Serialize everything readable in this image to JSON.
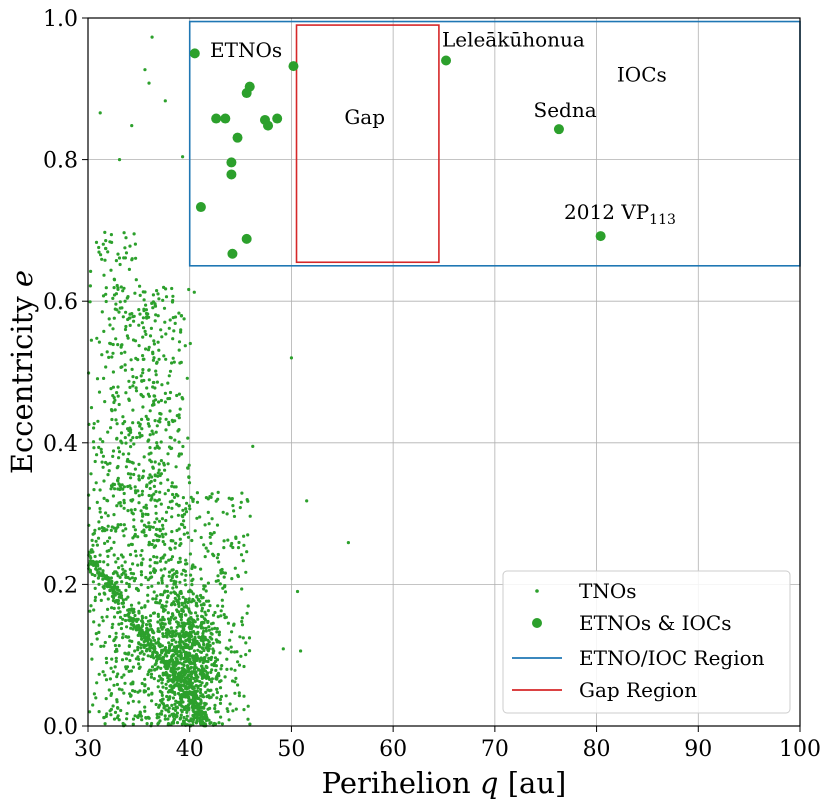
{
  "chart_data": {
    "type": "scatter",
    "xlabel_prefix": "Perihelion ",
    "xlabel_var": "q",
    "xlabel_unit": " [au]",
    "ylabel_prefix": "Eccentricity ",
    "ylabel_var": "e",
    "xlim": [
      30,
      100
    ],
    "ylim": [
      0,
      1
    ],
    "xticks": [
      "30",
      "40",
      "50",
      "60",
      "70",
      "80",
      "90",
      "100"
    ],
    "yticks": [
      "0.0",
      "0.2",
      "0.4",
      "0.6",
      "0.8",
      "1.0"
    ],
    "grid": true,
    "colors": {
      "points": "#2ca02c",
      "etno_region": "#1f77b4",
      "gap_region": "#d62728"
    },
    "regions": [
      {
        "name": "ETNO/IOC Region",
        "x": [
          40,
          100
        ],
        "y": [
          0.65,
          0.995
        ]
      },
      {
        "name": "Gap Region",
        "x": [
          50.5,
          64.5
        ],
        "y": [
          0.655,
          0.99
        ]
      }
    ],
    "annotations": {
      "etnos": {
        "text": "ETNOs",
        "x": 42,
        "y": 0.945
      },
      "gap": {
        "text": "Gap",
        "x": 55.2,
        "y": 0.85
      },
      "leleakuhonua": {
        "text": "Leleākūhonua",
        "x": 64.8,
        "y": 0.96
      },
      "iocs": {
        "text": "IOCs",
        "x": 82,
        "y": 0.91
      },
      "sedna": {
        "text": "Sedna",
        "x": 73.8,
        "y": 0.86
      },
      "vp113_prefix": {
        "text": "2012 VP",
        "x": 76.8,
        "y": 0.716
      },
      "vp113_sub": {
        "text": "113"
      }
    },
    "etnos_iocs": [
      {
        "x": 40.5,
        "y": 0.95
      },
      {
        "x": 50.2,
        "y": 0.932
      },
      {
        "x": 65.2,
        "y": 0.94
      },
      {
        "x": 45.9,
        "y": 0.903
      },
      {
        "x": 45.6,
        "y": 0.894
      },
      {
        "x": 42.6,
        "y": 0.858
      },
      {
        "x": 43.5,
        "y": 0.858
      },
      {
        "x": 47.4,
        "y": 0.856
      },
      {
        "x": 48.6,
        "y": 0.858
      },
      {
        "x": 47.7,
        "y": 0.848
      },
      {
        "x": 44.7,
        "y": 0.831
      },
      {
        "x": 76.3,
        "y": 0.843
      },
      {
        "x": 44.1,
        "y": 0.796
      },
      {
        "x": 44.1,
        "y": 0.779
      },
      {
        "x": 41.1,
        "y": 0.733
      },
      {
        "x": 80.4,
        "y": 0.692
      },
      {
        "x": 45.6,
        "y": 0.688
      },
      {
        "x": 44.2,
        "y": 0.667
      }
    ],
    "tnos_outliers": [
      {
        "x": 36.3,
        "y": 0.973
      },
      {
        "x": 35.6,
        "y": 0.927
      },
      {
        "x": 36.0,
        "y": 0.908
      },
      {
        "x": 37.6,
        "y": 0.883
      },
      {
        "x": 31.2,
        "y": 0.866
      },
      {
        "x": 34.3,
        "y": 0.848
      },
      {
        "x": 39.3,
        "y": 0.804
      },
      {
        "x": 33.1,
        "y": 0.8
      },
      {
        "x": 50.0,
        "y": 0.52
      },
      {
        "x": 46.2,
        "y": 0.395
      },
      {
        "x": 51.5,
        "y": 0.318
      },
      {
        "x": 55.6,
        "y": 0.259
      },
      {
        "x": 50.6,
        "y": 0.19
      },
      {
        "x": 49.2,
        "y": 0.109
      },
      {
        "x": 50.9,
        "y": 0.106
      },
      {
        "x": 45.7,
        "y": 0.27
      },
      {
        "x": 45.3,
        "y": 0.268
      },
      {
        "x": 44.4,
        "y": 0.296
      },
      {
        "x": 42.1,
        "y": 0.323
      },
      {
        "x": 42.8,
        "y": 0.33
      }
    ],
    "tnos_generated": {
      "count": 2600,
      "x_range": [
        30,
        46.5
      ],
      "y_range": [
        0,
        0.7
      ]
    },
    "legend": {
      "placement": "lower-right",
      "entries": [
        "TNOs",
        "ETNOs & IOCs",
        "ETNO/IOC Region",
        "Gap Region"
      ]
    }
  }
}
